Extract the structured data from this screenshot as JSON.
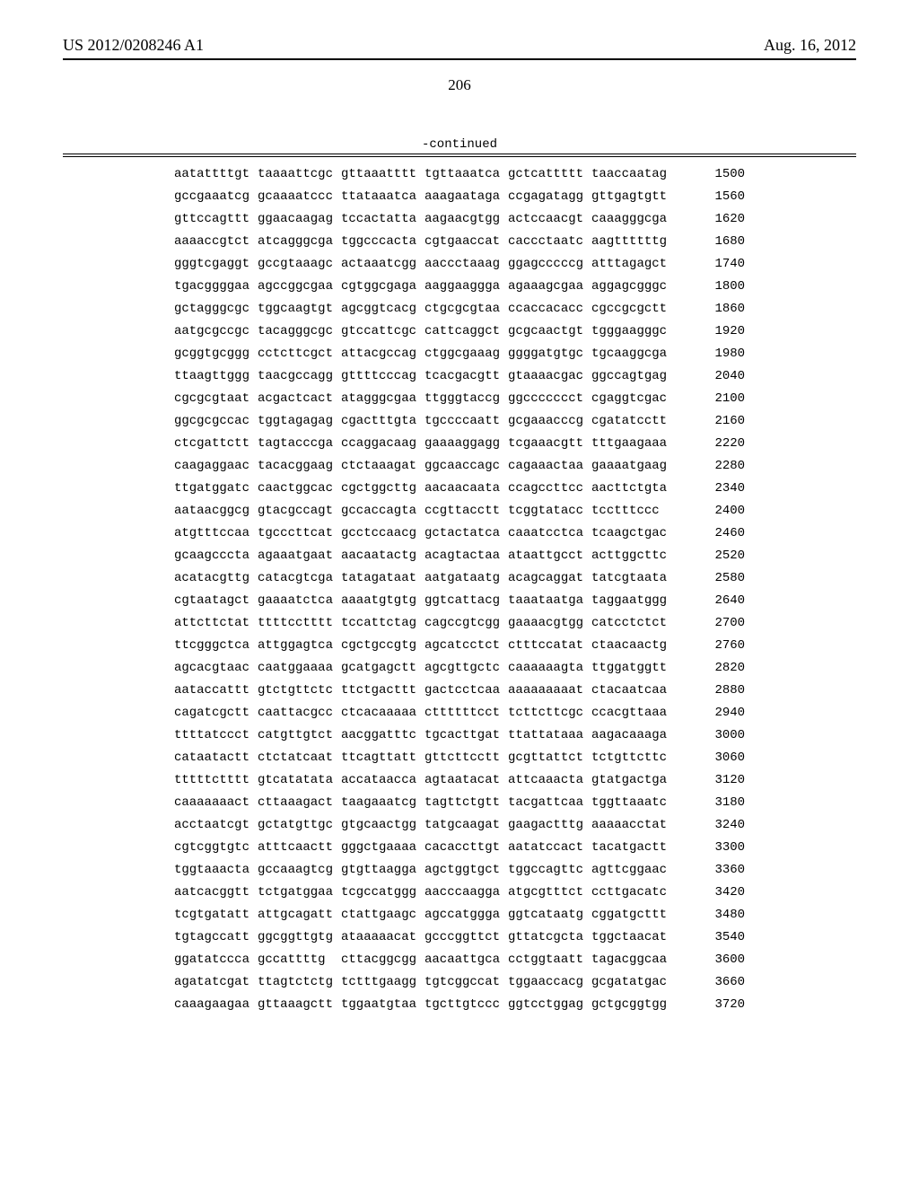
{
  "header": {
    "pub_number": "US 2012/0208246 A1",
    "pub_date": "Aug. 16, 2012"
  },
  "page_number": "206",
  "continued_label": "-continued",
  "sequence": {
    "font_family": "Courier New",
    "font_size_pt": 10,
    "rows": [
      {
        "blocks": [
          "aatattttgt",
          "taaaattcgc",
          "gttaaatttt",
          "tgttaaatca",
          "gctcattttt",
          "taaccaatag"
        ],
        "pos": "1500"
      },
      {
        "blocks": [
          "gccgaaatcg",
          "gcaaaatccc",
          "ttataaatca",
          "aaagaataga",
          "ccgagatagg",
          "gttgagtgtt"
        ],
        "pos": "1560"
      },
      {
        "blocks": [
          "gttccagttt",
          "ggaacaagag",
          "tccactatta",
          "aagaacgtgg",
          "actccaacgt",
          "caaagggcga"
        ],
        "pos": "1620"
      },
      {
        "blocks": [
          "aaaaccgtct",
          "atcagggcga",
          "tggcccacta",
          "cgtgaaccat",
          "caccctaatc",
          "aagttttttg"
        ],
        "pos": "1680"
      },
      {
        "blocks": [
          "gggtcgaggt",
          "gccgtaaagc",
          "actaaatcgg",
          "aaccctaaag",
          "ggagcccccg",
          "atttagagct"
        ],
        "pos": "1740"
      },
      {
        "blocks": [
          "tgacggggaa",
          "agccggcgaa",
          "cgtggcgaga",
          "aaggaaggga",
          "agaaagcgaa",
          "aggagcgggc"
        ],
        "pos": "1800"
      },
      {
        "blocks": [
          "gctagggcgc",
          "tggcaagtgt",
          "agcggtcacg",
          "ctgcgcgtaa",
          "ccaccacacc",
          "cgccgcgctt"
        ],
        "pos": "1860"
      },
      {
        "blocks": [
          "aatgcgccgc",
          "tacagggcgc",
          "gtccattcgc",
          "cattcaggct",
          "gcgcaactgt",
          "tgggaagggc"
        ],
        "pos": "1920"
      },
      {
        "blocks": [
          "gcggtgcggg",
          "cctcttcgct",
          "attacgccag",
          "ctggcgaaag",
          "ggggatgtgc",
          "tgcaaggcga"
        ],
        "pos": "1980"
      },
      {
        "blocks": [
          "ttaagttggg",
          "taacgccagg",
          "gttttcccag",
          "tcacgacgtt",
          "gtaaaacgac",
          "ggccagtgag"
        ],
        "pos": "2040"
      },
      {
        "blocks": [
          "cgcgcgtaat",
          "acgactcact",
          "atagggcgaa",
          "ttgggtaccg",
          "ggccccccct",
          "cgaggtcgac"
        ],
        "pos": "2100"
      },
      {
        "blocks": [
          "ggcgcgccac",
          "tggtagagag",
          "cgactttgta",
          "tgccccaatt",
          "gcgaaacccg",
          "cgatatcctt"
        ],
        "pos": "2160"
      },
      {
        "blocks": [
          "ctcgattctt",
          "tagtacccga",
          "ccaggacaag",
          "gaaaaggagg",
          "tcgaaacgtt",
          "tttgaagaaa"
        ],
        "pos": "2220"
      },
      {
        "blocks": [
          "caagaggaac",
          "tacacggaag",
          "ctctaaagat",
          "ggcaaccagc",
          "cagaaactaa",
          "gaaaatgaag"
        ],
        "pos": "2280"
      },
      {
        "blocks": [
          "ttgatggatc",
          "caactggcac",
          "cgctggcttg",
          "aacaacaata",
          "ccagccttcc",
          "aacttctgta"
        ],
        "pos": "2340"
      },
      {
        "blocks": [
          "aataacggcg",
          "gtacgccagt",
          "gccaccagta",
          "ccgttacctt",
          "tcggtatacc",
          "tcctttccc "
        ],
        "pos": "2400"
      },
      {
        "blocks": [
          "atgtttccaa",
          "tgcccttcat",
          "gcctccaacg",
          "gctactatca",
          "caaatcctca",
          "tcaagctgac"
        ],
        "pos": "2460"
      },
      {
        "blocks": [
          "gcaagcccta",
          "agaaatgaat",
          "aacaatactg",
          "acagtactaa",
          "ataattgcct",
          "acttggcttc"
        ],
        "pos": "2520"
      },
      {
        "blocks": [
          "acatacgttg",
          "catacgtcga",
          "tatagataat",
          "aatgataatg",
          "acagcaggat",
          "tatcgtaata"
        ],
        "pos": "2580"
      },
      {
        "blocks": [
          "cgtaatagct",
          "gaaaatctca",
          "aaaatgtgtg",
          "ggtcattacg",
          "taaataatga",
          "taggaatggg"
        ],
        "pos": "2640"
      },
      {
        "blocks": [
          "attcttctat",
          "ttttcctttt",
          "tccattctag",
          "cagccgtcgg",
          "gaaaacgtgg",
          "catcctctct"
        ],
        "pos": "2700"
      },
      {
        "blocks": [
          "ttcgggctca",
          "attggagtca",
          "cgctgccgtg",
          "agcatcctct",
          "ctttccatat",
          "ctaacaactg"
        ],
        "pos": "2760"
      },
      {
        "blocks": [
          "agcacgtaac",
          "caatggaaaa",
          "gcatgagctt",
          "agcgttgctc",
          "caaaaaagta",
          "ttggatggtt"
        ],
        "pos": "2820"
      },
      {
        "blocks": [
          "aataccattt",
          "gtctgttctc",
          "ttctgacttt",
          "gactcctcaa",
          "aaaaaaaaat",
          "ctacaatcaa"
        ],
        "pos": "2880"
      },
      {
        "blocks": [
          "cagatcgctt",
          "caattacgcc",
          "ctcacaaaaa",
          "cttttttcct",
          "tcttcttcgc",
          "ccacgttaaa"
        ],
        "pos": "2940"
      },
      {
        "blocks": [
          "ttttatccct",
          "catgttgtct",
          "aacggatttc",
          "tgcacttgat",
          "ttattataaa",
          "aagacaaaga"
        ],
        "pos": "3000"
      },
      {
        "blocks": [
          "cataatactt",
          "ctctatcaat",
          "ttcagttatt",
          "gttcttcctt",
          "gcgttattct",
          "tctgttcttc"
        ],
        "pos": "3060"
      },
      {
        "blocks": [
          "tttttctttt",
          "gtcatatata",
          "accataacca",
          "agtaatacat",
          "attcaaacta",
          "gtatgactga"
        ],
        "pos": "3120"
      },
      {
        "blocks": [
          "caaaaaaact",
          "cttaaagact",
          "taagaaatcg",
          "tagttctgtt",
          "tacgattcaa",
          "tggttaaatc"
        ],
        "pos": "3180"
      },
      {
        "blocks": [
          "acctaatcgt",
          "gctatgttgc",
          "gtgcaactgg",
          "tatgcaagat",
          "gaagactttg",
          "aaaaacctat"
        ],
        "pos": "3240"
      },
      {
        "blocks": [
          "cgtcggtgtc",
          "atttcaactt",
          "gggctgaaaa",
          "cacaccttgt",
          "aatatccact",
          "tacatgactt"
        ],
        "pos": "3300"
      },
      {
        "blocks": [
          "tggtaaacta",
          "gccaaagtcg",
          "gtgttaagga",
          "agctggtgct",
          "tggccagttc",
          "agttcggaac"
        ],
        "pos": "3360"
      },
      {
        "blocks": [
          "aatcacggtt",
          "tctgatggaa",
          "tcgccatggg",
          "aacccaagga",
          "atgcgtttct",
          "ccttgacatc"
        ],
        "pos": "3420"
      },
      {
        "blocks": [
          "tcgtgatatt",
          "attgcagatt",
          "ctattgaagc",
          "agccatggga",
          "ggtcataatg",
          "cggatgcttt"
        ],
        "pos": "3480"
      },
      {
        "blocks": [
          "tgtagccatt",
          "ggcggttgtg",
          "ataaaaacat",
          "gcccggttct",
          "gttatcgcta",
          "tggctaacat"
        ],
        "pos": "3540"
      },
      {
        "blocks": [
          "ggatatccca",
          "gccattttg ",
          "cttacggcgg",
          "aacaattgca",
          "cctggtaatt",
          "tagacggcaa"
        ],
        "pos": "3600"
      },
      {
        "blocks": [
          "agatatcgat",
          "ttagtctctg",
          "tctttgaagg",
          "tgtcggccat",
          "tggaaccacg",
          "gcgatatgac"
        ],
        "pos": "3660"
      },
      {
        "blocks": [
          "caaagaagaa",
          "gttaaagctt",
          "tggaatgtaa",
          "tgcttgtccc",
          "ggtcctggag",
          "gctgcggtgg"
        ],
        "pos": "3720"
      }
    ]
  }
}
